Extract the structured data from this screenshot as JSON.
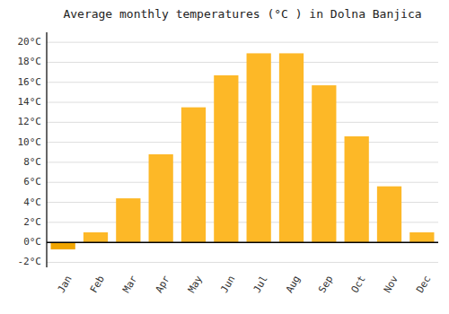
{
  "chart_data": {
    "type": "bar",
    "title": "Average monthly temperatures (°C ) in Dolna Banjica",
    "categories": [
      "Jan",
      "Feb",
      "Mar",
      "Apr",
      "May",
      "Jun",
      "Jul",
      "Aug",
      "Sep",
      "Oct",
      "Nov",
      "Dec"
    ],
    "values": [
      -0.7,
      1.0,
      4.4,
      8.8,
      13.5,
      16.7,
      18.9,
      18.9,
      15.7,
      10.6,
      5.6,
      1.0
    ],
    "colors": [
      "#F0A500",
      "#FDB827",
      "#FDB827",
      "#FDB827",
      "#FDB827",
      "#FDB827",
      "#FDB827",
      "#FDB827",
      "#FDB827",
      "#FDB827",
      "#FDB827",
      "#FDB827"
    ],
    "ylim": [
      -2.5,
      21
    ],
    "yticks": [
      {
        "value": -2,
        "label": "-2°C"
      },
      {
        "value": 0,
        "label": "0°C"
      },
      {
        "value": 2,
        "label": "2°C"
      },
      {
        "value": 4,
        "label": "4°C"
      },
      {
        "value": 6,
        "label": "6°C"
      },
      {
        "value": 8,
        "label": "8°C"
      },
      {
        "value": 10,
        "label": "10°C"
      },
      {
        "value": 12,
        "label": "12°C"
      },
      {
        "value": 14,
        "label": "14°C"
      },
      {
        "value": 16,
        "label": "16°C"
      },
      {
        "value": 18,
        "label": "18°C"
      },
      {
        "value": 20,
        "label": "20°C"
      }
    ],
    "grid": true
  }
}
